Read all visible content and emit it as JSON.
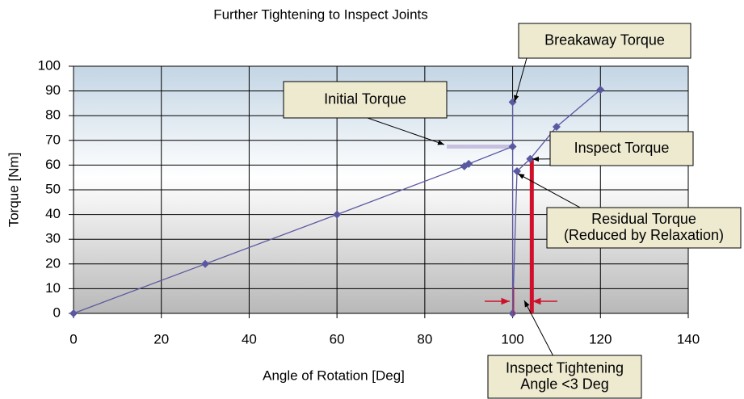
{
  "chart_data": {
    "type": "line",
    "title": "Further Tightening to Inspect Joints",
    "xlabel": "Angle of Rotation [Deg]",
    "ylabel": "Torque [Nm]",
    "x": [
      0,
      30,
      60,
      89,
      90,
      100,
      100,
      100,
      101,
      104,
      110,
      120
    ],
    "series": [
      {
        "name": "Torque",
        "color": "#5a58a0",
        "values": [
          0,
          20,
          40,
          59.5,
          60.5,
          67.5,
          85.5,
          0,
          57.5,
          62.5,
          75.5,
          90.5
        ]
      }
    ],
    "xlim": [
      0,
      140
    ],
    "xticks": [
      0,
      20,
      40,
      60,
      80,
      100,
      120,
      140
    ],
    "ylim": [
      0,
      100
    ],
    "yticks": [
      0,
      10,
      20,
      30,
      40,
      50,
      60,
      70,
      80,
      90,
      100
    ],
    "grid": true,
    "annotations": {
      "breakaway": "Breakaway Torque",
      "initial": "Initial Torque",
      "inspect": "Inspect Torque",
      "residual": [
        "Residual Torque",
        "(Reduced by Relaxation)"
      ],
      "angle": [
        "Inspect Tightening",
        "Angle <3 Deg"
      ]
    }
  }
}
